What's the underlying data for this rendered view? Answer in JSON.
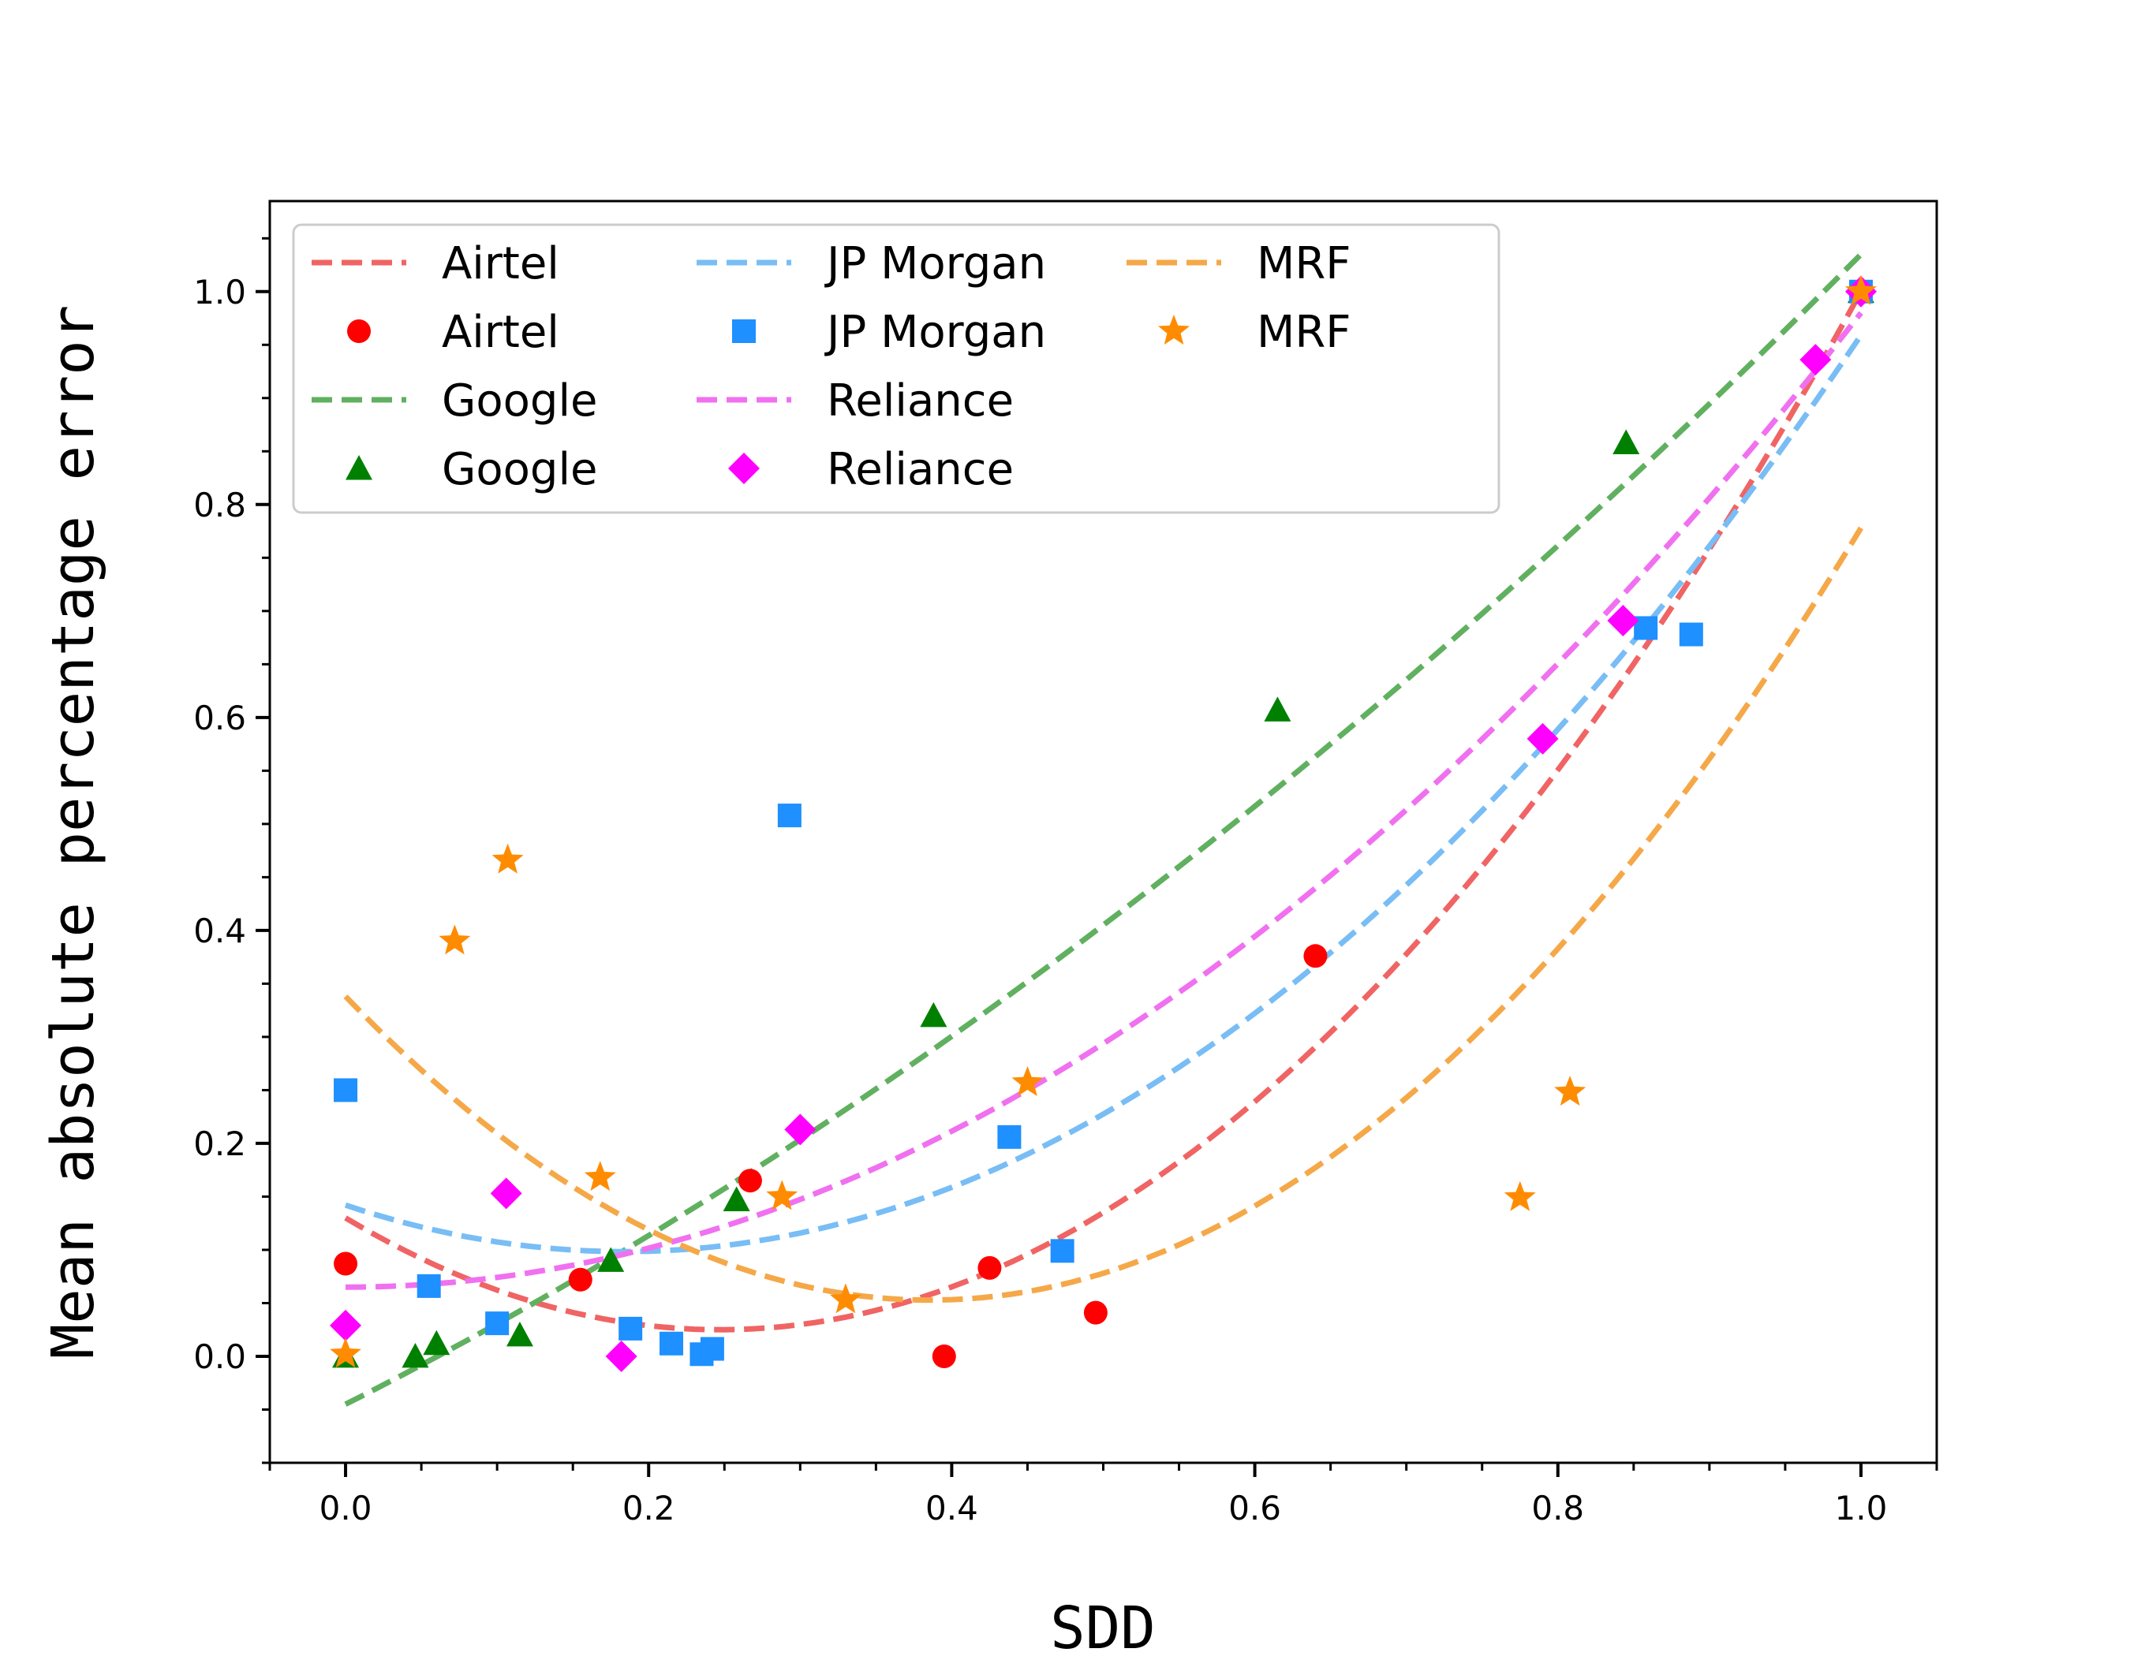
{
  "chart_data": {
    "type": "scatter",
    "title": "",
    "xlabel": "SDD",
    "ylabel": "Mean absolute percentage error",
    "xlim": [
      -0.05,
      1.05
    ],
    "ylim": [
      -0.1,
      1.085
    ],
    "xticks": [
      "0.0",
      "0.2",
      "0.4",
      "0.6",
      "0.8",
      "1.0"
    ],
    "yticks": [
      "0.0",
      "0.2",
      "0.4",
      "0.6",
      "0.8",
      "1.0"
    ],
    "grid": false,
    "legend_placement": "upper-left",
    "legend_columns": 3,
    "series": [
      {
        "name": "Airtel",
        "marker": "circle",
        "color": "#ff0000",
        "fit_color": "#f06464",
        "fit": [
          0.13,
          -0.85,
          1.72
        ],
        "points": [
          [
            0.0,
            0.087
          ],
          [
            0.155,
            0.072
          ],
          [
            0.267,
            0.165
          ],
          [
            0.395,
            0.0
          ],
          [
            0.425,
            0.083
          ],
          [
            0.495,
            0.041
          ],
          [
            0.64,
            0.376
          ],
          [
            1.0,
            1.0
          ]
        ]
      },
      {
        "name": "Google",
        "marker": "triangle",
        "color": "#008000",
        "fit_color": "#60b060",
        "fit": [
          -0.045,
          0.72,
          0.36
        ],
        "points": [
          [
            0.0,
            0.0
          ],
          [
            0.046,
            0.0
          ],
          [
            0.06,
            0.012
          ],
          [
            0.115,
            0.02
          ],
          [
            0.175,
            0.09
          ],
          [
            0.258,
            0.147
          ],
          [
            0.388,
            0.32
          ],
          [
            0.615,
            0.607
          ],
          [
            0.845,
            0.858
          ],
          [
            1.0,
            1.0
          ]
        ]
      },
      {
        "name": "JP Morgan",
        "marker": "square",
        "color": "#1e90ff",
        "fit_color": "#78bdf5",
        "fit": [
          0.142,
          -0.475,
          1.292
        ],
        "points": [
          [
            0.0,
            0.25
          ],
          [
            0.055,
            0.066
          ],
          [
            0.1,
            0.031
          ],
          [
            0.188,
            0.026
          ],
          [
            0.215,
            0.012
          ],
          [
            0.235,
            0.002
          ],
          [
            0.242,
            0.007
          ],
          [
            0.293,
            0.508
          ],
          [
            0.438,
            0.206
          ],
          [
            0.473,
            0.099
          ],
          [
            0.858,
            0.684
          ],
          [
            0.888,
            0.678
          ],
          [
            1.0,
            1.0
          ]
        ]
      },
      {
        "name": "Reliance",
        "marker": "diamond",
        "color": "#ff00ff",
        "fit_color": "#f070f0",
        "fit": [
          0.065,
          0.0,
          0.915
        ],
        "points": [
          [
            0.0,
            0.029
          ],
          [
            0.106,
            0.153
          ],
          [
            0.182,
            0.0
          ],
          [
            0.3,
            0.213
          ],
          [
            0.79,
            0.58
          ],
          [
            0.843,
            0.691
          ],
          [
            0.97,
            0.936
          ],
          [
            1.0,
            1.0
          ]
        ]
      },
      {
        "name": "MRF",
        "marker": "star",
        "color": "#ff8c00",
        "fit_color": "#f5a848",
        "fit": [
          0.338,
          -1.48,
          1.92
        ],
        "points": [
          [
            0.0,
            0.002
          ],
          [
            0.072,
            0.39
          ],
          [
            0.107,
            0.466
          ],
          [
            0.168,
            0.168
          ],
          [
            0.288,
            0.15
          ],
          [
            0.33,
            0.053
          ],
          [
            0.45,
            0.257
          ],
          [
            0.775,
            0.149
          ],
          [
            0.808,
            0.248
          ],
          [
            1.0,
            1.0
          ]
        ]
      }
    ],
    "legend": [
      {
        "label": "Airtel",
        "kind": "line",
        "series": 0
      },
      {
        "label": "Airtel",
        "kind": "marker",
        "series": 0
      },
      {
        "label": "Google",
        "kind": "line",
        "series": 1
      },
      {
        "label": "Google",
        "kind": "marker",
        "series": 1
      },
      {
        "label": "JP Morgan",
        "kind": "line",
        "series": 2
      },
      {
        "label": "JP Morgan",
        "kind": "marker",
        "series": 2
      },
      {
        "label": "Reliance",
        "kind": "line",
        "series": 3
      },
      {
        "label": "Reliance",
        "kind": "marker",
        "series": 3
      },
      {
        "label": "MRF",
        "kind": "line",
        "series": 4
      },
      {
        "label": "MRF",
        "kind": "marker",
        "series": 4
      }
    ]
  }
}
